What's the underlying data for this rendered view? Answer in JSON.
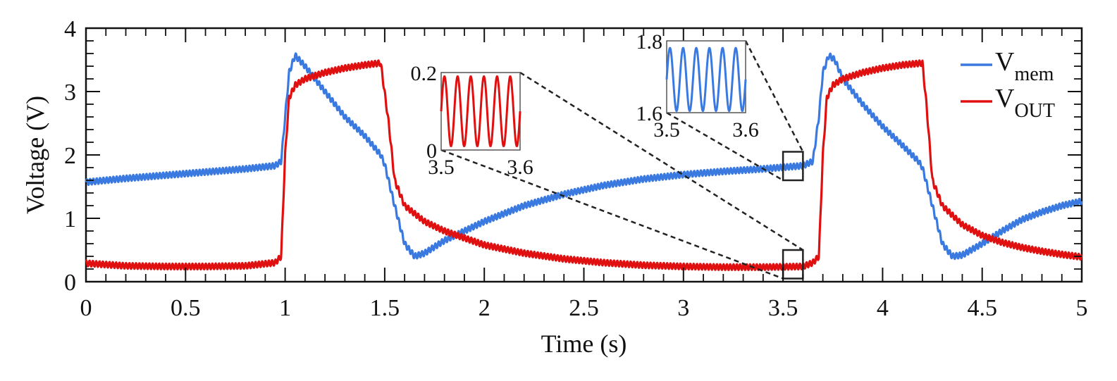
{
  "chart_data": {
    "type": "line",
    "xlabel": "Time (s)",
    "ylabel": "Voltage (V)",
    "xlim": [
      0,
      5
    ],
    "ylim": [
      0,
      4
    ],
    "x_ticks": [
      "0",
      "0.5",
      "1",
      "1.5",
      "2",
      "2.5",
      "3",
      "3.5",
      "4",
      "4.5",
      "5"
    ],
    "y_ticks": [
      "0",
      "1",
      "2",
      "3",
      "4"
    ],
    "grid": false,
    "legend_position": "top-right",
    "series": [
      {
        "name": "V",
        "subscript": "mem",
        "color": "#3a7ae0",
        "x": [
          0,
          0.2,
          0.4,
          0.6,
          0.8,
          0.95,
          0.98,
          1.0,
          1.02,
          1.05,
          1.1,
          1.2,
          1.3,
          1.4,
          1.48,
          1.5,
          1.55,
          1.6,
          1.65,
          1.7,
          1.8,
          2.0,
          2.2,
          2.4,
          2.6,
          2.8,
          3.0,
          3.2,
          3.4,
          3.6,
          3.65,
          3.68,
          3.7,
          3.73,
          3.76,
          3.8,
          3.9,
          4.0,
          4.1,
          4.18,
          4.2,
          4.25,
          4.3,
          4.35,
          4.4,
          4.5,
          4.6,
          4.7,
          4.8,
          4.9,
          5.0
        ],
        "values": [
          1.57,
          1.63,
          1.68,
          1.73,
          1.78,
          1.83,
          1.9,
          2.6,
          3.3,
          3.57,
          3.4,
          3.0,
          2.6,
          2.3,
          2.0,
          1.85,
          1.2,
          0.6,
          0.4,
          0.45,
          0.65,
          0.95,
          1.2,
          1.38,
          1.52,
          1.62,
          1.69,
          1.74,
          1.78,
          1.83,
          1.9,
          2.6,
          3.3,
          3.57,
          3.5,
          3.2,
          2.8,
          2.45,
          2.15,
          1.9,
          1.8,
          1.2,
          0.6,
          0.4,
          0.42,
          0.6,
          0.8,
          0.98,
          1.1,
          1.2,
          1.27
        ]
      },
      {
        "name": "V",
        "subscript": "OUT",
        "color": "#e01010",
        "x": [
          0,
          0.2,
          0.4,
          0.6,
          0.8,
          0.95,
          0.98,
          1.0,
          1.02,
          1.05,
          1.1,
          1.2,
          1.3,
          1.4,
          1.48,
          1.52,
          1.55,
          1.6,
          1.7,
          1.8,
          2.0,
          2.2,
          2.4,
          2.6,
          2.8,
          3.0,
          3.2,
          3.4,
          3.6,
          3.65,
          3.68,
          3.7,
          3.72,
          3.75,
          3.8,
          3.9,
          4.0,
          4.1,
          4.2,
          4.22,
          4.25,
          4.3,
          4.4,
          4.5,
          4.6,
          4.7,
          4.8,
          4.9,
          5.0
        ],
        "values": [
          0.29,
          0.25,
          0.24,
          0.24,
          0.25,
          0.3,
          0.4,
          2.0,
          2.9,
          3.1,
          3.2,
          3.3,
          3.37,
          3.42,
          3.45,
          2.5,
          1.6,
          1.2,
          0.95,
          0.8,
          0.58,
          0.45,
          0.36,
          0.3,
          0.26,
          0.24,
          0.23,
          0.23,
          0.24,
          0.3,
          0.4,
          2.0,
          2.9,
          3.1,
          3.2,
          3.3,
          3.37,
          3.42,
          3.45,
          2.8,
          1.6,
          1.2,
          0.9,
          0.73,
          0.62,
          0.54,
          0.48,
          0.43,
          0.39
        ]
      }
    ],
    "zoom_boxes": [
      {
        "x": [
          3.5,
          3.6
        ],
        "y": [
          1.6,
          2.05
        ],
        "inset": "inset_mem"
      },
      {
        "x": [
          3.5,
          3.6
        ],
        "y": [
          0.05,
          0.5
        ],
        "inset": "inset_out"
      }
    ],
    "insets": {
      "inset_out": {
        "series_index": 1,
        "xlim": [
          3.5,
          3.6
        ],
        "ylim": [
          0,
          0.2
        ],
        "x_ticks": [
          "3.5",
          "3.6"
        ],
        "y_ticks": [
          "0",
          "0.2"
        ],
        "cycles": 6,
        "amplitude_range": [
          0.01,
          0.19
        ]
      },
      "inset_mem": {
        "series_index": 0,
        "xlim": [
          3.5,
          3.6
        ],
        "ylim": [
          1.6,
          1.8
        ],
        "x_ticks": [
          "3.5",
          "3.6"
        ],
        "y_ticks": [
          "1.6",
          "1.8"
        ],
        "cycles": 6,
        "amplitude_range": [
          1.605,
          1.78
        ]
      }
    },
    "ripple": {
      "cycles_per_second": 60,
      "amplitude": 0.045
    }
  }
}
